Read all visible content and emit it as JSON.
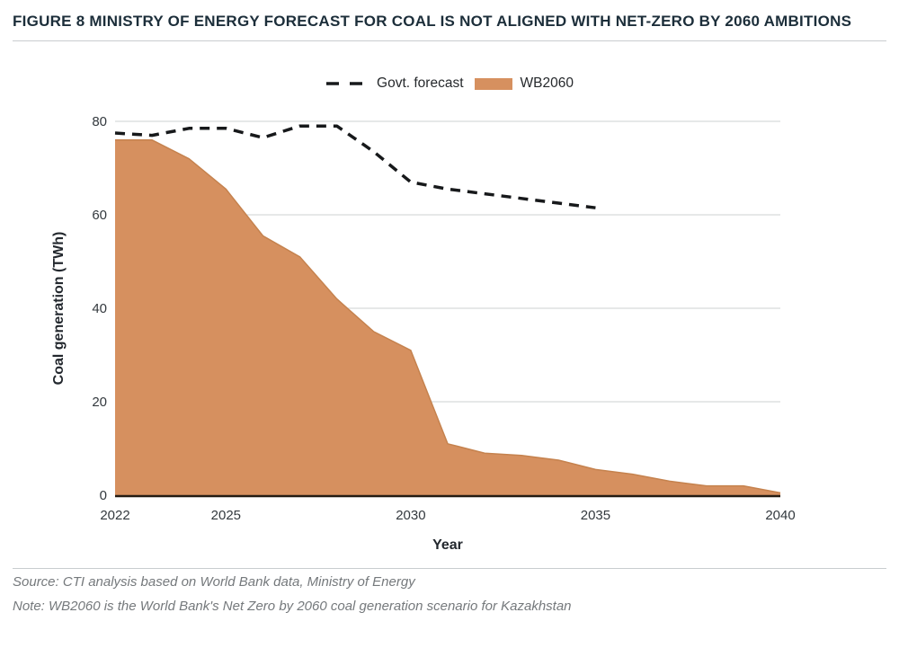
{
  "title": "FIGURE 8 MINISTRY OF ENERGY FORECAST FOR COAL IS NOT ALIGNED WITH NET-ZERO BY 2060 AMBITIONS",
  "legend": [
    {
      "label": "Govt. forecast",
      "swatch": "dashed-line-swatch",
      "color": "#17191b"
    },
    {
      "label": "WB2060",
      "swatch": "area-swatch",
      "color": "#d6905f"
    }
  ],
  "chart_data": {
    "type": "area",
    "title": "",
    "xlabel": "Year",
    "ylabel": "Coal generation (TWh)",
    "xlim": [
      2022,
      2040
    ],
    "ylim": [
      0,
      80
    ],
    "x_ticks": [
      2022,
      2025,
      2030,
      2035,
      2040
    ],
    "y_ticks": [
      0,
      20,
      40,
      60,
      80
    ],
    "grid": "horizontal",
    "legend_position": "top-center",
    "colors": {
      "area_fill": "#d6905f",
      "area_edge": "#c5824e",
      "dashed_line": "#17191b",
      "gridline": "#d8dadb",
      "axis_line": "#241c12"
    },
    "series": [
      {
        "name": "Govt. forecast",
        "style": "dashed-line",
        "color": "#17191b",
        "x": [
          2022,
          2023,
          2024,
          2025,
          2026,
          2027,
          2028,
          2029,
          2030,
          2031,
          2032,
          2033,
          2034,
          2035
        ],
        "values": [
          77.5,
          77,
          78.5,
          78.5,
          76.5,
          79,
          79,
          73.5,
          67,
          65.5,
          64.5,
          63.5,
          62.5,
          61.5
        ]
      },
      {
        "name": "WB2060",
        "style": "area",
        "color": "#d6905f",
        "x": [
          2022,
          2023,
          2024,
          2025,
          2026,
          2027,
          2028,
          2029,
          2030,
          2031,
          2032,
          2033,
          2034,
          2035,
          2036,
          2037,
          2038,
          2039,
          2040
        ],
        "values": [
          76,
          76,
          72,
          65.5,
          55.5,
          51,
          42,
          35,
          31,
          11,
          9,
          8.5,
          7.5,
          5.5,
          4.5,
          3,
          2,
          2,
          0.5
        ]
      }
    ]
  },
  "footer": {
    "source": "Source: CTI analysis based on World Bank data, Ministry of Energy",
    "note": "Note: WB2060 is the World Bank's Net Zero by 2060 coal generation scenario for Kazakhstan"
  }
}
